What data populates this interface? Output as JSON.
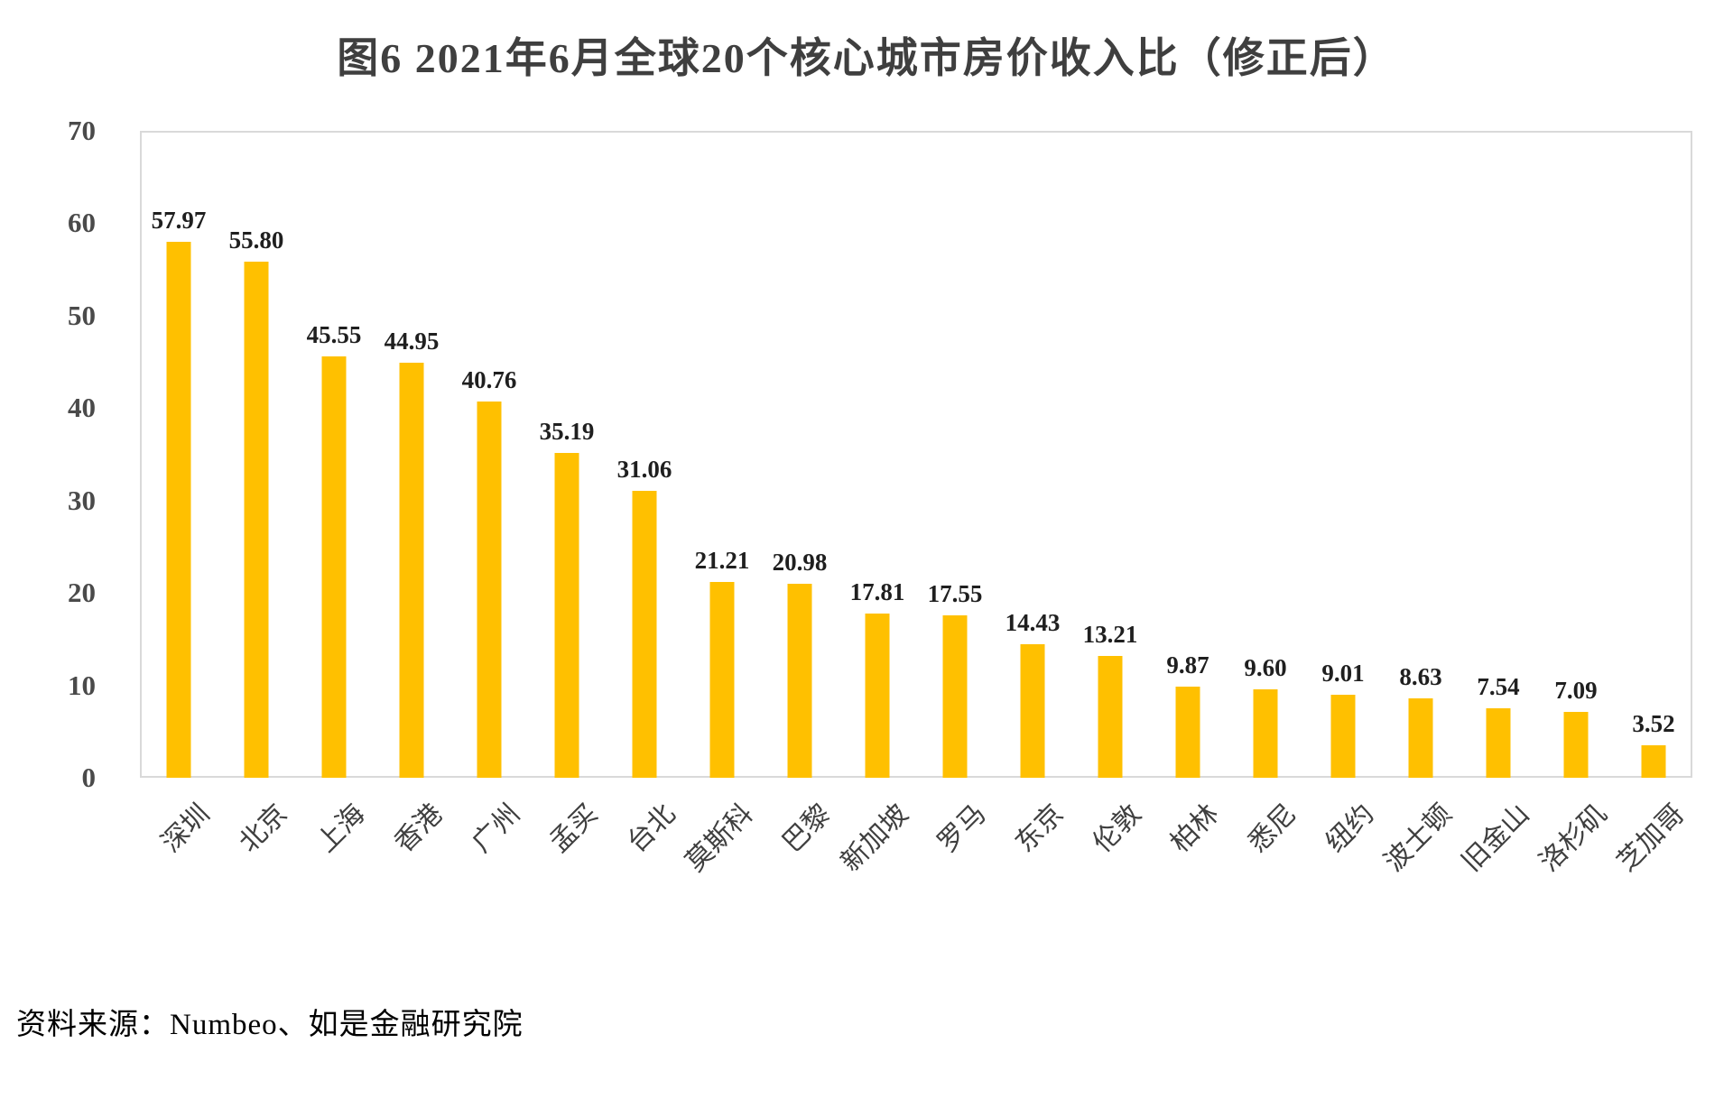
{
  "title": "图6 2021年6月全球20个核心城市房价收入比（修正后）",
  "source": "资料来源：Numbeo、如是金融研究院",
  "chart_data": {
    "type": "bar",
    "title": "图6 2021年6月全球20个核心城市房价收入比（修正后）",
    "categories": [
      "深圳",
      "北京",
      "上海",
      "香港",
      "广州",
      "孟买",
      "台北",
      "莫斯科",
      "巴黎",
      "新加坡",
      "罗马",
      "东京",
      "伦敦",
      "柏林",
      "悉尼",
      "纽约",
      "波士顿",
      "旧金山",
      "洛杉矶",
      "芝加哥"
    ],
    "values": [
      57.97,
      55.8,
      45.55,
      44.95,
      40.76,
      35.19,
      31.06,
      21.21,
      20.98,
      17.81,
      17.55,
      14.43,
      13.21,
      9.87,
      9.6,
      9.01,
      8.63,
      7.54,
      7.09,
      3.52
    ],
    "value_label_decimals": 2,
    "xlabel": "",
    "ylabel": "",
    "ylim": [
      0,
      70
    ],
    "yticks": [
      0,
      10,
      20,
      30,
      40,
      50,
      60,
      70
    ],
    "grid": false,
    "legend": false,
    "value_labels_shown": true,
    "bar_color": "#FFC000"
  },
  "colors": {
    "bar": "#FFC000",
    "title_text": "#3f3f3f",
    "axis_tick_text": "#4a4a4a",
    "value_label_text": "#1f1f1f",
    "category_label_text": "#3f3f3f",
    "plot_border": "#d9d9d9",
    "source_text": "#000000"
  }
}
